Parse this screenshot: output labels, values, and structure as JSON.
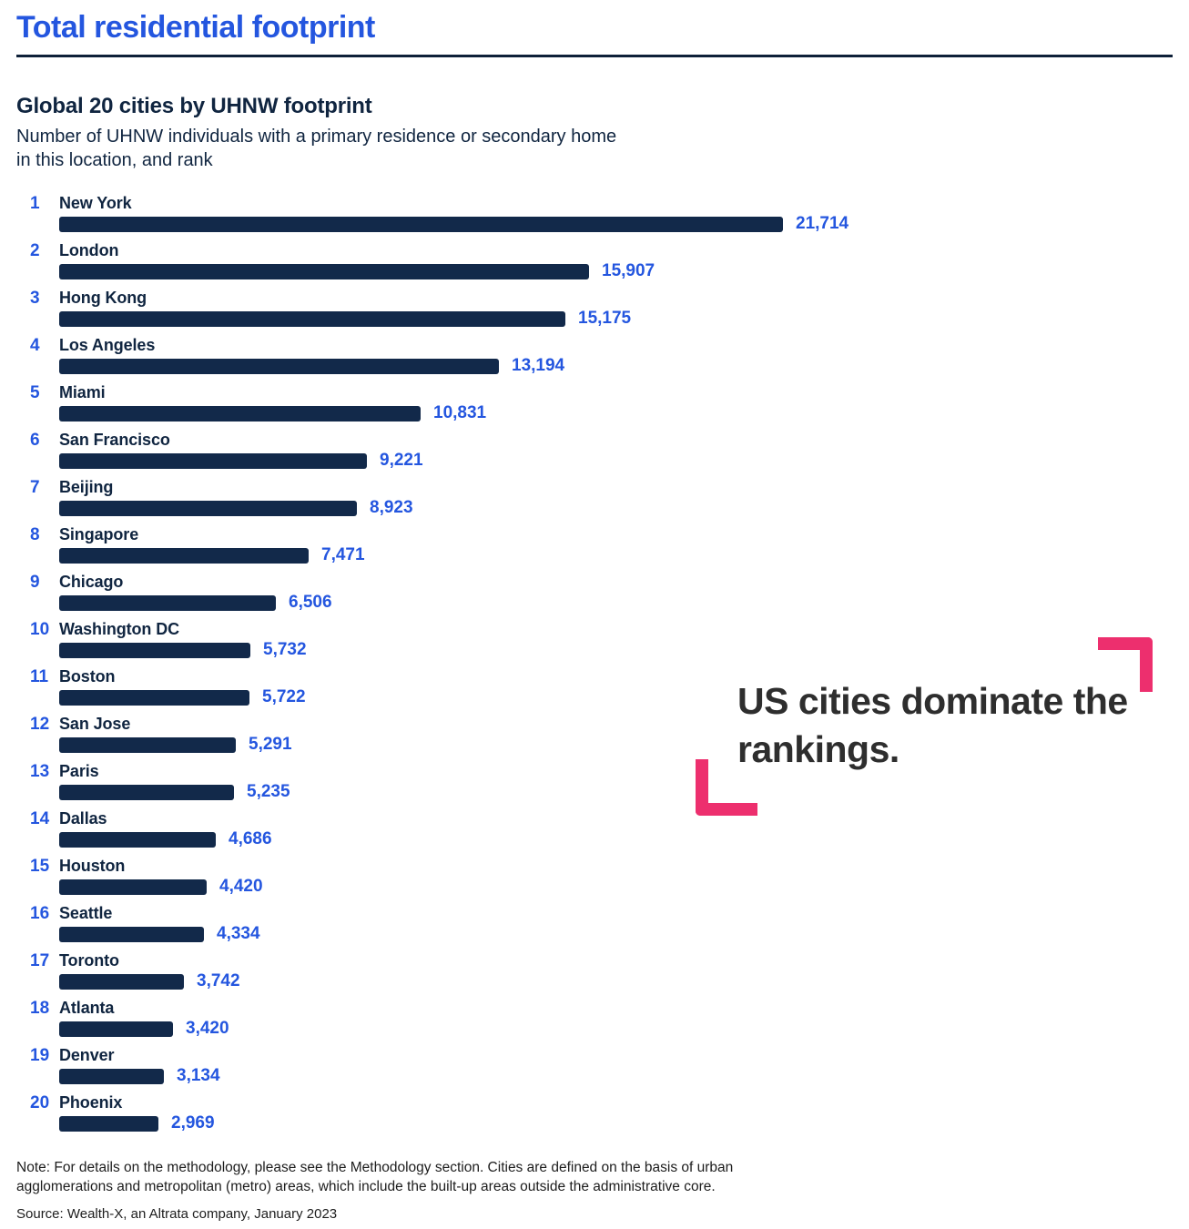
{
  "page": {
    "title": "Total residential footprint",
    "accent_blue": "#2456df",
    "bar_navy": "#12294a",
    "pink": "#ed2f6e"
  },
  "chart": {
    "title": "Global 20 cities by UHNW footprint",
    "subtitle": "Number of UHNW individuals with a primary residence or secondary home in this location, and rank"
  },
  "chart_data": {
    "type": "bar",
    "orientation": "horizontal",
    "title": "Global 20 cities by UHNW footprint",
    "subtitle": "Number of UHNW individuals with a primary residence or secondary home in this location, and rank",
    "ranks": [
      1,
      2,
      3,
      4,
      5,
      6,
      7,
      8,
      9,
      10,
      11,
      12,
      13,
      14,
      15,
      16,
      17,
      18,
      19,
      20
    ],
    "categories": [
      "New York",
      "London",
      "Hong Kong",
      "Los Angeles",
      "Miami",
      "San Francisco",
      "Beijing",
      "Singapore",
      "Chicago",
      "Washington DC",
      "Boston",
      "San Jose",
      "Paris",
      "Dallas",
      "Houston",
      "Seattle",
      "Toronto",
      "Atlanta",
      "Denver",
      "Phoenix"
    ],
    "values": [
      21714,
      15907,
      15175,
      13194,
      10831,
      9221,
      8923,
      7471,
      6506,
      5732,
      5722,
      5291,
      5235,
      4686,
      4420,
      4334,
      3742,
      3420,
      3134,
      2969
    ],
    "value_labels": [
      "21,714",
      "15,907",
      "15,175",
      "13,194",
      "10,831",
      "9,221",
      "8,923",
      "7,471",
      "6,506",
      "5,732",
      "5,722",
      "5,291",
      "5,235",
      "4,686",
      "4,420",
      "4,334",
      "3,742",
      "3,420",
      "3,134",
      "2,969"
    ],
    "xlim": [
      0,
      22000
    ],
    "grid": false,
    "legend": "none",
    "bar_color": "#12294a",
    "value_label_color": "#2456df"
  },
  "annotation": {
    "text": "US cities dominate the rankings."
  },
  "footer": {
    "note": "Note: For details on the methodology, please see the Methodology section. Cities are defined on the basis of urban agglomerations and metropolitan (metro) areas, which include the built-up areas outside the administrative core.",
    "source": "Source: Wealth-X, an Altrata company, January 2023"
  }
}
